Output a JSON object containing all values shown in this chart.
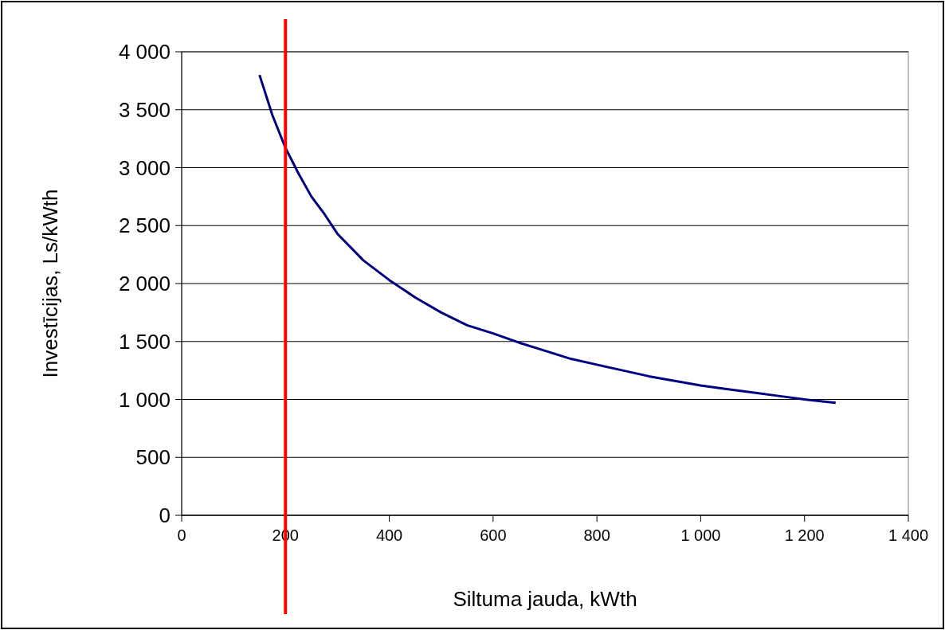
{
  "chart_data": {
    "type": "line",
    "xlabel": "Siltuma jauda, kWth",
    "ylabel": "Investīcijas, Ls/kWth",
    "x": [
      150,
      175,
      200,
      225,
      250,
      275,
      300,
      350,
      400,
      450,
      500,
      550,
      600,
      650,
      700,
      750,
      800,
      850,
      900,
      950,
      1000,
      1050,
      1100,
      1150,
      1200,
      1260
    ],
    "series": [
      {
        "color": "#000080",
        "values": [
          3800,
          3450,
          3170,
          2950,
          2750,
          2600,
          2430,
          2200,
          2030,
          1880,
          1750,
          1640,
          1570,
          1490,
          1420,
          1350,
          1300,
          1250,
          1200,
          1160,
          1120,
          1090,
          1060,
          1030,
          1000,
          970
        ]
      }
    ],
    "xlim": [
      0,
      1400
    ],
    "xticks": [
      0,
      200,
      400,
      600,
      800,
      {
        "value": 1000,
        "label": "1 000"
      },
      {
        "value": 1200,
        "label": "1 200"
      },
      {
        "value": 1400,
        "label": "1 400"
      }
    ],
    "ylim": [
      0,
      4000
    ],
    "yticks": [
      0,
      500,
      {
        "value": 1000,
        "label": "1 000"
      },
      {
        "value": 1500,
        "label": "1 500"
      },
      {
        "value": 2000,
        "label": "2 000"
      },
      {
        "value": 2500,
        "label": "2 500"
      },
      {
        "value": 3000,
        "label": "3 000"
      },
      {
        "value": 3500,
        "label": "3 500"
      },
      {
        "value": 4000,
        "label": "4 000"
      }
    ],
    "grid": "y",
    "marker": "none",
    "line_style": "solid",
    "ref_lines": [
      {
        "axis": "x",
        "value": 200,
        "color": "#ff0000",
        "line_style": "solid"
      }
    ]
  }
}
